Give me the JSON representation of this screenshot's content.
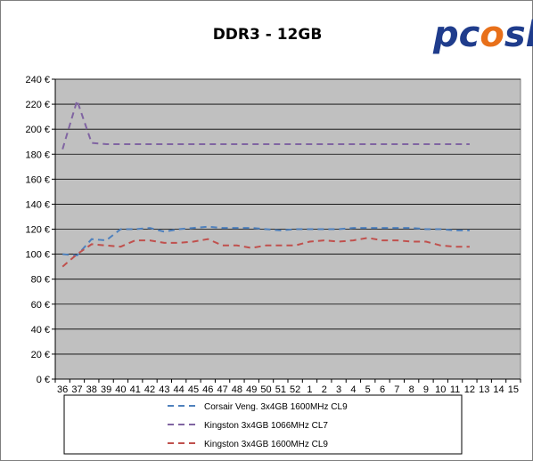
{
  "chart_data": {
    "type": "line",
    "title": "DDR3 - 12GB",
    "xlabel": "",
    "ylabel": "",
    "ylim": [
      0,
      240
    ],
    "y_ticks": [
      0,
      20,
      40,
      60,
      80,
      100,
      120,
      140,
      160,
      180,
      200,
      220,
      240
    ],
    "y_tick_suffix": " €",
    "categories": [
      "36",
      "37",
      "38",
      "39",
      "40",
      "41",
      "42",
      "43",
      "44",
      "45",
      "46",
      "47",
      "48",
      "49",
      "50",
      "51",
      "52",
      "1",
      "2",
      "3",
      "4",
      "5",
      "6",
      "7",
      "8",
      "9",
      "10",
      "11",
      "12",
      "13",
      "14",
      "15"
    ],
    "grid": "horizontal",
    "legend_position": "bottom",
    "plot_background": "#c0c0c0",
    "series": [
      {
        "name": "Corsair Veng. 3x4GB 1600MHz CL9",
        "color": "#4f81bd",
        "values": [
          100,
          99,
          112,
          111,
          120,
          120,
          121,
          118,
          120,
          121,
          122,
          121,
          121,
          121,
          120,
          119,
          120,
          120,
          120,
          120,
          121,
          121,
          121,
          121,
          121,
          120,
          120,
          119,
          119,
          null,
          null,
          null
        ]
      },
      {
        "name": "Kingston 3x4GB 1066MHz CL7",
        "color": "#8064a2",
        "values": [
          184,
          223,
          189,
          188,
          188,
          188,
          188,
          188,
          188,
          188,
          188,
          188,
          188,
          188,
          188,
          188,
          188,
          188,
          188,
          188,
          188,
          188,
          188,
          188,
          188,
          188,
          188,
          188,
          188,
          null,
          null,
          null
        ]
      },
      {
        "name": "Kingston 3x4GB 1600MHz CL9",
        "color": "#c0504d",
        "values": [
          90,
          100,
          108,
          107,
          106,
          111,
          111,
          109,
          109,
          110,
          112,
          107,
          107,
          105,
          107,
          107,
          107,
          110,
          111,
          110,
          111,
          113,
          111,
          111,
          110,
          110,
          107,
          106,
          106,
          null,
          null,
          null
        ]
      }
    ]
  },
  "logo": {
    "text": "pcosk"
  }
}
